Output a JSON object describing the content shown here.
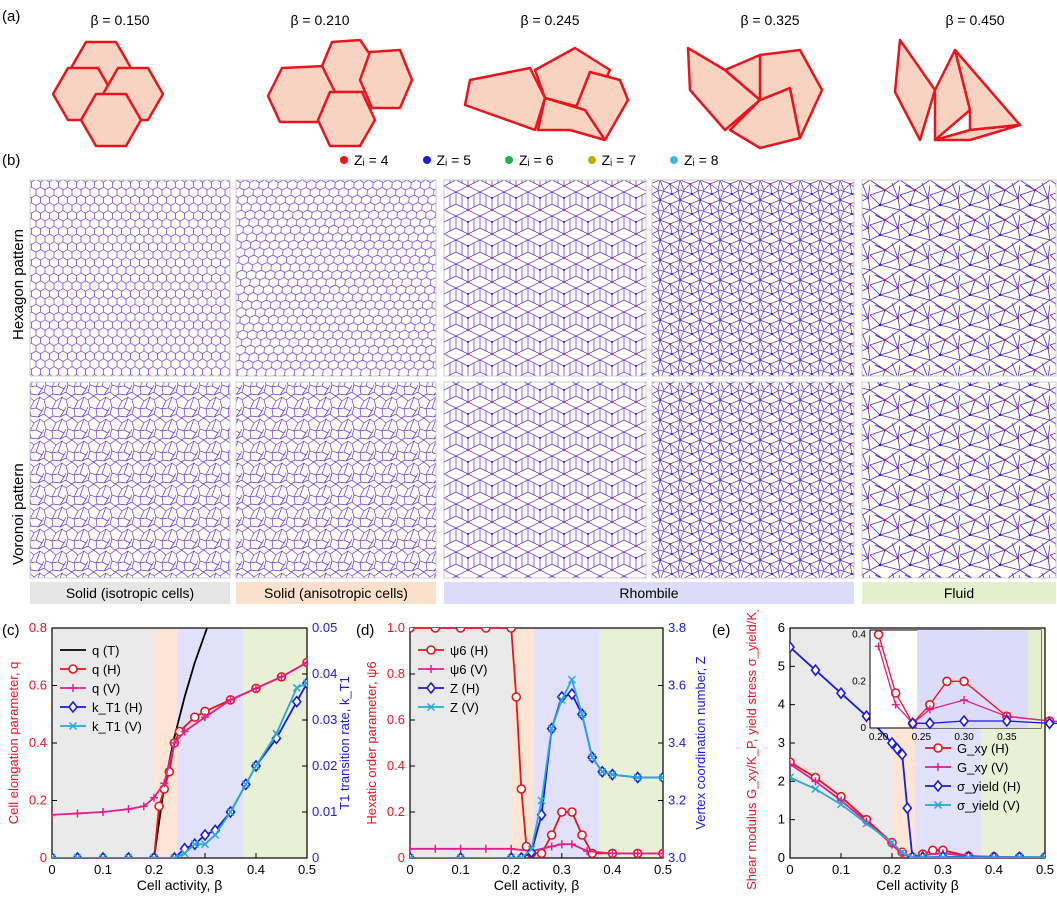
{
  "panel_labels": {
    "a": "(a)",
    "b": "(b)",
    "c": "(c)",
    "d": "(d)",
    "e": "(e)"
  },
  "shapes": [
    {
      "beta_label": "β = 0.150",
      "beta": 0.15
    },
    {
      "beta_label": "β = 0.210",
      "beta": 0.21
    },
    {
      "beta_label": "β = 0.245",
      "beta": 0.245
    },
    {
      "beta_label": "β = 0.325",
      "beta": 0.325
    },
    {
      "beta_label": "β = 0.450",
      "beta": 0.45
    }
  ],
  "zi_legend": [
    {
      "label": "Zᵢ = 4",
      "color": "#e8141e"
    },
    {
      "label": "Zᵢ = 5",
      "color": "#1a1ae0"
    },
    {
      "label": "Zᵢ = 6",
      "color": "#1fb04a"
    },
    {
      "label": "Zᵢ = 7",
      "color": "#c8a800"
    },
    {
      "label": "Zᵢ = 8",
      "color": "#3cb8e6"
    }
  ],
  "row_labels": {
    "hex": "Hexagon pattern",
    "vor": "Voronoi pattern"
  },
  "phases": [
    {
      "label": "Solid (isotropic cells)",
      "color": "#e6e6e6"
    },
    {
      "label": "Solid (anisotropic cells)",
      "color": "#fbe0cc"
    },
    {
      "label": "Rhombile",
      "color": "#dcdcf8"
    },
    {
      "label": "Fluid",
      "color": "#e4efcf"
    }
  ],
  "colors": {
    "red": "#e8141e",
    "blue": "#1a1ae0",
    "pink": "#e0208a",
    "cyan": "#2aa8d8",
    "black": "#000000"
  },
  "chart_data": [
    {
      "type": "line",
      "xlabel": "Cell activity, β",
      "ylabel": "Cell elongation parameter, q",
      "y2label": "T1 transition rate, k_T1",
      "xlim": [
        0,
        0.5
      ],
      "ylim": [
        0,
        0.8
      ],
      "y2lim": [
        0,
        0.05
      ],
      "xticks": [
        "0",
        "0.1",
        "0.2",
        "0.3",
        "0.4",
        "0.5"
      ],
      "yticks": [
        "0",
        "0.2",
        "0.4",
        "0.6",
        "0.8"
      ],
      "y2ticks": [
        "0",
        "0.01",
        "0.02",
        "0.03",
        "0.04",
        "0.05"
      ],
      "legend": [
        "q (T)",
        "q (H)",
        "q (V)",
        "k_T1 (H)",
        "k_T1 (V)"
      ],
      "series": [
        {
          "name": "q (T)",
          "x": [
            0.2,
            0.22,
            0.24,
            0.26,
            0.28,
            0.3,
            0.32
          ],
          "values": [
            0.0,
            0.25,
            0.42,
            0.56,
            0.68,
            0.78,
            0.88
          ]
        },
        {
          "name": "q (H)",
          "x": [
            0.2,
            0.21,
            0.22,
            0.23,
            0.24,
            0.25,
            0.28,
            0.3,
            0.35,
            0.4,
            0.45,
            0.5
          ],
          "values": [
            0.0,
            0.18,
            0.24,
            0.3,
            0.4,
            0.44,
            0.49,
            0.51,
            0.55,
            0.59,
            0.63,
            0.68
          ]
        },
        {
          "name": "q (V)",
          "x": [
            0,
            0.05,
            0.1,
            0.15,
            0.18,
            0.2,
            0.22,
            0.24,
            0.26,
            0.3,
            0.35,
            0.4,
            0.45,
            0.5
          ],
          "values": [
            0.15,
            0.155,
            0.16,
            0.17,
            0.18,
            0.21,
            0.26,
            0.4,
            0.44,
            0.49,
            0.55,
            0.59,
            0.63,
            0.68
          ]
        },
        {
          "name": "k_T1 (H)",
          "x": [
            0,
            0.05,
            0.1,
            0.15,
            0.2,
            0.24,
            0.26,
            0.28,
            0.3,
            0.32,
            0.35,
            0.38,
            0.4,
            0.44,
            0.48,
            0.5
          ],
          "values": [
            0,
            0,
            0,
            0,
            0,
            0,
            0.002,
            0.003,
            0.005,
            0.006,
            0.01,
            0.016,
            0.02,
            0.026,
            0.034,
            0.038
          ]
        },
        {
          "name": "k_T1 (V)",
          "x": [
            0,
            0.05,
            0.1,
            0.15,
            0.2,
            0.24,
            0.26,
            0.28,
            0.3,
            0.32,
            0.35,
            0.38,
            0.4,
            0.44,
            0.48,
            0.5
          ],
          "values": [
            0,
            0,
            0,
            0,
            0,
            0,
            0.001,
            0.003,
            0.003,
            0.005,
            0.01,
            0.016,
            0.02,
            0.027,
            0.037,
            0.038
          ]
        }
      ]
    },
    {
      "type": "line",
      "xlabel": "Cell activity, β",
      "ylabel": "Hexatic order parameter, ψ6",
      "y2label": "Vertex coordination number, Z",
      "xlim": [
        0,
        0.5
      ],
      "ylim": [
        0,
        1.0
      ],
      "y2lim": [
        3.0,
        3.8
      ],
      "xticks": [
        "0",
        "0.1",
        "0.2",
        "0.3",
        "0.4",
        "0.5"
      ],
      "yticks": [
        "0",
        "0.2",
        "0.4",
        "0.6",
        "0.8",
        "1.0"
      ],
      "y2ticks": [
        "3.0",
        "3.2",
        "3.4",
        "3.6",
        "3.8"
      ],
      "legend": [
        "ψ6 (H)",
        "ψ6 (V)",
        "Z (H)",
        "Z (V)"
      ],
      "series": [
        {
          "name": "ψ6 (H)",
          "x": [
            0,
            0.05,
            0.1,
            0.15,
            0.2,
            0.21,
            0.22,
            0.23,
            0.24,
            0.26,
            0.28,
            0.3,
            0.32,
            0.34,
            0.36,
            0.4,
            0.45,
            0.5
          ],
          "values": [
            1,
            1,
            1,
            1,
            1,
            0.7,
            0.3,
            0.05,
            0.02,
            0.02,
            0.1,
            0.2,
            0.2,
            0.1,
            0.02,
            0.02,
            0.02,
            0.02
          ]
        },
        {
          "name": "ψ6 (V)",
          "x": [
            0,
            0.05,
            0.1,
            0.15,
            0.2,
            0.24,
            0.28,
            0.3,
            0.32,
            0.35,
            0.4,
            0.45,
            0.5
          ],
          "values": [
            0.04,
            0.04,
            0.04,
            0.04,
            0.04,
            0.03,
            0.05,
            0.06,
            0.06,
            0.03,
            0.02,
            0.02,
            0.02
          ]
        },
        {
          "name": "Z (H)",
          "x": [
            0,
            0.1,
            0.2,
            0.22,
            0.24,
            0.26,
            0.28,
            0.3,
            0.32,
            0.34,
            0.36,
            0.38,
            0.4,
            0.45,
            0.5
          ],
          "values": [
            3.0,
            3.0,
            3.0,
            3.0,
            3.02,
            3.15,
            3.45,
            3.56,
            3.57,
            3.5,
            3.35,
            3.3,
            3.29,
            3.28,
            3.28
          ]
        },
        {
          "name": "Z (V)",
          "x": [
            0,
            0.1,
            0.2,
            0.22,
            0.24,
            0.26,
            0.28,
            0.3,
            0.32,
            0.34,
            0.36,
            0.38,
            0.4,
            0.45,
            0.5
          ],
          "values": [
            3.0,
            3.0,
            3.0,
            3.0,
            3.03,
            3.2,
            3.45,
            3.55,
            3.62,
            3.5,
            3.35,
            3.3,
            3.29,
            3.28,
            3.28
          ]
        }
      ]
    },
    {
      "type": "line",
      "xlabel": "Cell activity β",
      "ylabel": "Shear modulus G_xy/K_P, yield stress σ_yield/K_P",
      "xlim": [
        0,
        0.5
      ],
      "ylim": [
        0,
        6
      ],
      "xticks": [
        "0",
        "0.1",
        "0.2",
        "0.3",
        "0.4",
        "0.5"
      ],
      "yticks": [
        "0",
        "1",
        "2",
        "3",
        "4",
        "5",
        "6"
      ],
      "legend": [
        "G_xy (H)",
        "G_xy (V)",
        "σ_yield (H)",
        "σ_yield (V)"
      ],
      "inset": {
        "xticks": [
          "0.20",
          "0.25",
          "0.30",
          "0.35"
        ],
        "yticks": [
          "0",
          "0.2",
          "0.4"
        ]
      },
      "series": [
        {
          "name": "G_xy (H)",
          "x": [
            0,
            0.05,
            0.1,
            0.15,
            0.2,
            0.22,
            0.24,
            0.26,
            0.28,
            0.3,
            0.35,
            0.4,
            0.45,
            0.5
          ],
          "values": [
            2.5,
            2.1,
            1.6,
            1.0,
            0.4,
            0.15,
            0.02,
            0.1,
            0.2,
            0.2,
            0.05,
            0.03,
            0.02,
            0.02
          ]
        },
        {
          "name": "G_xy (V)",
          "x": [
            0,
            0.05,
            0.1,
            0.15,
            0.2,
            0.22,
            0.24,
            0.26,
            0.3,
            0.35,
            0.4,
            0.45,
            0.5
          ],
          "values": [
            2.45,
            2.0,
            1.5,
            0.95,
            0.35,
            0.1,
            0.02,
            0.08,
            0.12,
            0.05,
            0.03,
            0.02,
            0.02
          ]
        },
        {
          "name": "σ_yield (H)",
          "x": [
            0,
            0.05,
            0.1,
            0.15,
            0.2,
            0.21,
            0.22,
            0.23,
            0.24,
            0.26,
            0.3,
            0.35,
            0.4,
            0.45,
            0.5
          ],
          "values": [
            5.5,
            4.9,
            4.3,
            3.7,
            3.0,
            2.85,
            2.7,
            1.3,
            0.02,
            0.02,
            0.03,
            0.03,
            0.02,
            0.02,
            0.02
          ]
        },
        {
          "name": "σ_yield (V)",
          "x": [
            0,
            0.05,
            0.1,
            0.15,
            0.2,
            0.22,
            0.24,
            0.26,
            0.3,
            0.35,
            0.4,
            0.45,
            0.5
          ],
          "values": [
            2.1,
            1.8,
            1.4,
            0.9,
            0.4,
            0.15,
            0.02,
            0.02,
            0.02,
            0.02,
            0.02,
            0.02,
            0.02
          ]
        }
      ]
    }
  ]
}
